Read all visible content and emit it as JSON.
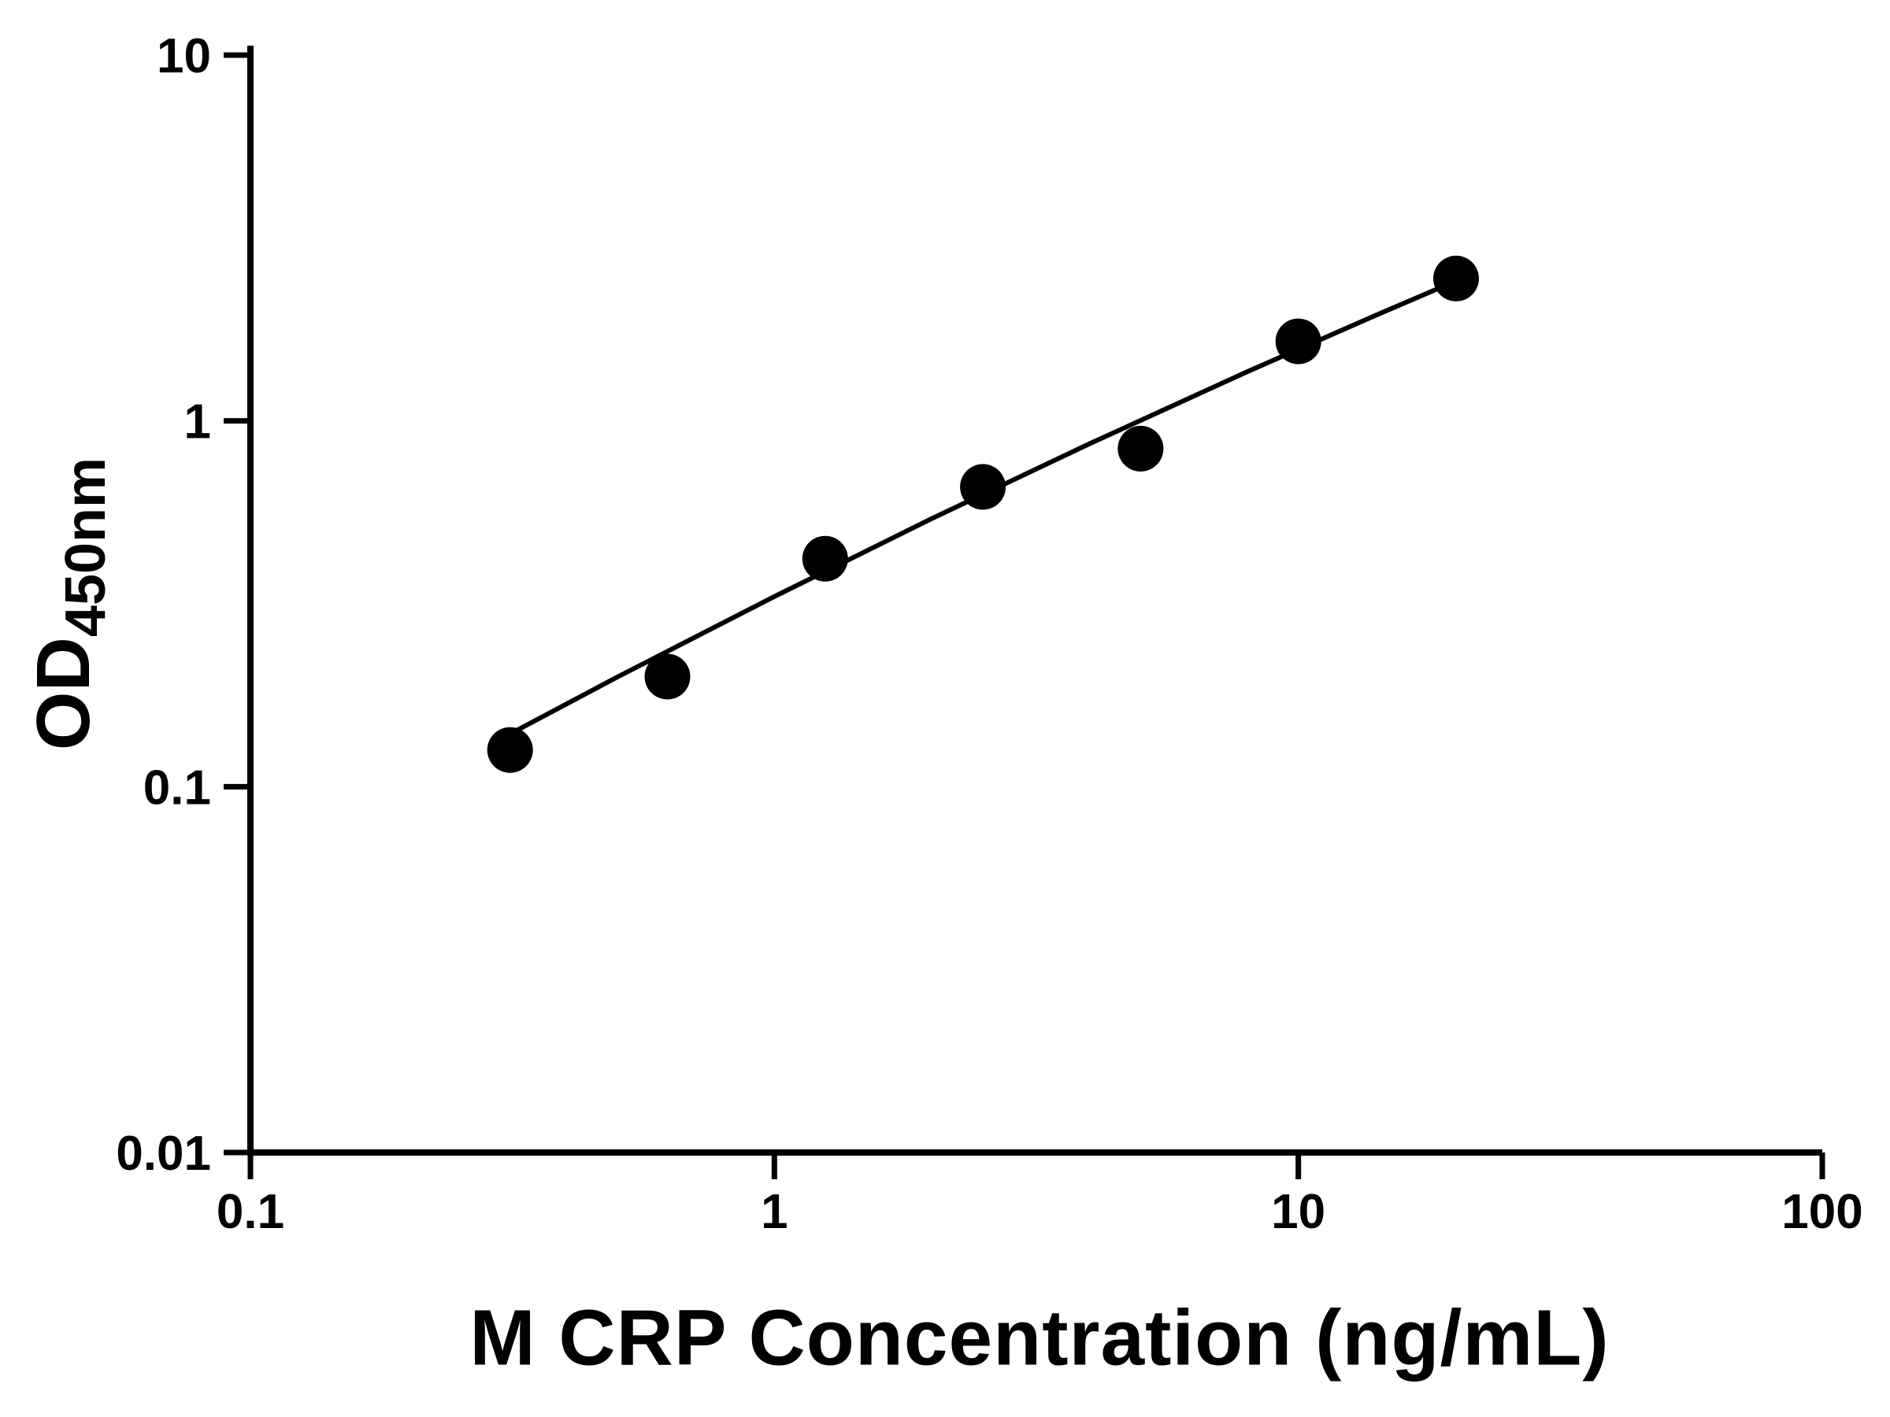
{
  "chart_data": {
    "type": "scatter",
    "title": "",
    "xlabel": "M CRP Concentration (ng/mL)",
    "ylabel_main": "OD",
    "ylabel_sub": "450nm",
    "x_scale": "log",
    "y_scale": "log",
    "xlim": [
      0.1,
      100
    ],
    "ylim": [
      0.01,
      10
    ],
    "x_ticks": [
      0.1,
      1,
      10,
      100
    ],
    "x_tick_labels": [
      "0.1",
      "1",
      "10",
      "100"
    ],
    "y_ticks": [
      0.01,
      0.1,
      1,
      10
    ],
    "y_tick_labels": [
      "0.01",
      "0.1",
      "1",
      "10"
    ],
    "grid": false,
    "legend": null,
    "series": [
      {
        "marker": "filled-circle",
        "x": [
          0.313,
          0.625,
          1.25,
          2.5,
          5,
          10,
          20
        ],
        "y": [
          0.126,
          0.2,
          0.42,
          0.66,
          0.84,
          1.65,
          2.45
        ]
      }
    ],
    "trend_line": {
      "x": [
        0.3,
        0.5,
        1,
        2,
        4,
        8,
        14,
        20.5
      ],
      "y": [
        0.135,
        0.199,
        0.331,
        0.541,
        0.867,
        1.364,
        1.939,
        2.45
      ]
    },
    "colors": {
      "points": "#000000",
      "line": "#000000",
      "axis": "#000000",
      "background": "#ffffff"
    },
    "marker_radius_px": 29
  }
}
